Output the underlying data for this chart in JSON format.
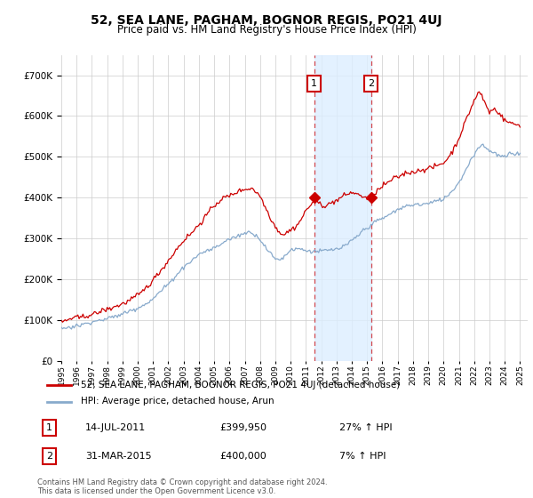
{
  "title": "52, SEA LANE, PAGHAM, BOGNOR REGIS, PO21 4UJ",
  "subtitle": "Price paid vs. HM Land Registry's House Price Index (HPI)",
  "legend_line1": "52, SEA LANE, PAGHAM, BOGNOR REGIS, PO21 4UJ (detached house)",
  "legend_line2": "HPI: Average price, detached house, Arun",
  "annotation1_date": "14-JUL-2011",
  "annotation1_price": "£399,950",
  "annotation1_hpi": "27% ↑ HPI",
  "annotation2_date": "31-MAR-2015",
  "annotation2_price": "£400,000",
  "annotation2_hpi": "7% ↑ HPI",
  "footer": "Contains HM Land Registry data © Crown copyright and database right 2024.\nThis data is licensed under the Open Government Licence v3.0.",
  "red_color": "#cc0000",
  "blue_color": "#88aacc",
  "shade_color": "#ddeeff",
  "background_color": "#ffffff",
  "grid_color": "#cccccc",
  "sale1_year": 2011.54,
  "sale2_year": 2015.25,
  "sale1_price": 399950,
  "sale2_price": 400000,
  "ylim_min": 0,
  "ylim_max": 750000,
  "xlim_min": 1995.0,
  "xlim_max": 2025.5
}
